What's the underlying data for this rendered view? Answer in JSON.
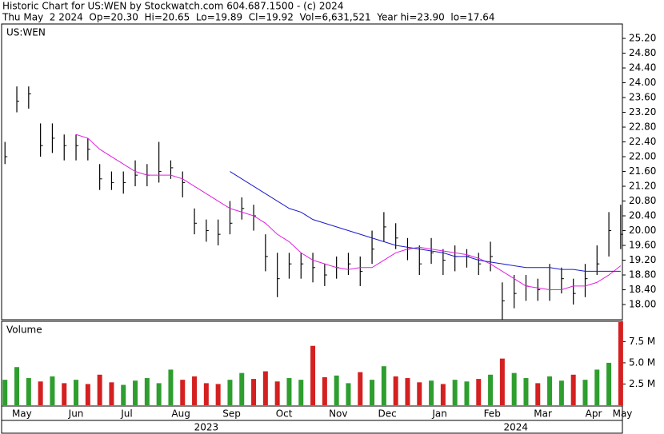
{
  "chart_data": {
    "type": "ohlc",
    "title": "Historic Chart for US:WEN by Stockwatch.com 604.687.1500 - (c) 2024",
    "subtitle": "Thu May  2 2024  Op=20.30  Hi=20.65  Lo=19.89  Cl=19.92  Vol=6,631,521  Year hi=23.90  lo=17.64",
    "symbol": "US:WEN",
    "volume_label": "Volume",
    "x": [
      2,
      9,
      16,
      23,
      30,
      37,
      44,
      51,
      58,
      65,
      72,
      79,
      86,
      93,
      100,
      107,
      114,
      121,
      128,
      135,
      142,
      149,
      156,
      163,
      170,
      177,
      184,
      191,
      198,
      205,
      212,
      219,
      226,
      233,
      240,
      247,
      254,
      261,
      268,
      275,
      282,
      289,
      296,
      303,
      310,
      317,
      324,
      331,
      338,
      345,
      352,
      359,
      366
    ],
    "high": [
      22.4,
      23.9,
      23.9,
      22.9,
      22.9,
      22.6,
      22.6,
      22.5,
      21.8,
      21.6,
      21.6,
      21.9,
      21.8,
      22.4,
      21.9,
      21.6,
      20.6,
      20.3,
      20.3,
      20.8,
      20.9,
      20.7,
      19.9,
      19.4,
      19.4,
      19.4,
      19.4,
      19.1,
      19.3,
      19.4,
      19.3,
      20.0,
      20.5,
      20.2,
      19.8,
      19.6,
      19.8,
      19.5,
      19.6,
      19.5,
      19.4,
      19.7,
      18.6,
      18.8,
      18.8,
      18.7,
      19.1,
      19.0,
      18.7,
      19.1,
      19.6,
      20.5,
      20.7
    ],
    "low": [
      21.8,
      23.2,
      23.3,
      22.0,
      22.1,
      21.9,
      21.9,
      21.9,
      21.1,
      21.1,
      21.0,
      21.2,
      21.2,
      21.3,
      21.4,
      20.9,
      19.9,
      19.7,
      19.6,
      19.9,
      20.3,
      20.0,
      18.9,
      18.2,
      18.7,
      18.7,
      18.6,
      18.5,
      18.7,
      18.8,
      18.5,
      19.1,
      19.7,
      19.5,
      19.2,
      18.8,
      19.1,
      18.8,
      18.9,
      19.0,
      18.8,
      18.9,
      17.6,
      17.9,
      18.1,
      18.1,
      18.1,
      18.3,
      18.0,
      18.2,
      18.8,
      19.3,
      19.5
    ],
    "close": [
      22.0,
      23.5,
      23.7,
      22.3,
      22.5,
      22.3,
      22.3,
      22.2,
      21.4,
      21.3,
      21.3,
      21.5,
      21.5,
      21.6,
      21.7,
      21.3,
      20.2,
      20.0,
      19.9,
      20.2,
      20.6,
      20.4,
      19.3,
      18.7,
      19.1,
      19.1,
      19.0,
      18.8,
      19.0,
      19.1,
      18.9,
      19.5,
      20.1,
      19.8,
      19.5,
      19.1,
      19.4,
      19.2,
      19.3,
      19.3,
      19.1,
      19.3,
      18.1,
      18.3,
      18.5,
      18.4,
      18.4,
      18.7,
      18.3,
      18.7,
      19.1,
      20.0,
      19.9
    ],
    "up_color": "#2e9e2e",
    "down_color": "#d42020",
    "bar_color": "#000000",
    "ma": [
      {
        "color": "#e020e0",
        "values": [
          null,
          null,
          null,
          null,
          null,
          null,
          22.6,
          22.5,
          22.2,
          22.0,
          21.8,
          21.6,
          21.5,
          21.5,
          21.5,
          21.4,
          21.2,
          21.0,
          20.8,
          20.6,
          20.5,
          20.4,
          20.2,
          19.9,
          19.7,
          19.4,
          19.2,
          19.1,
          19.0,
          18.95,
          19.0,
          19.0,
          19.2,
          19.4,
          19.5,
          19.55,
          19.5,
          19.45,
          19.4,
          19.35,
          19.25,
          19.1,
          18.9,
          18.7,
          18.5,
          18.45,
          18.4,
          18.4,
          18.5,
          18.5,
          18.6,
          18.8,
          19.05
        ]
      },
      {
        "color": "#1a1acc",
        "values": [
          null,
          null,
          null,
          null,
          null,
          null,
          null,
          null,
          null,
          null,
          null,
          null,
          null,
          null,
          null,
          null,
          null,
          null,
          null,
          21.6,
          21.4,
          21.2,
          21.0,
          20.8,
          20.6,
          20.5,
          20.3,
          20.2,
          20.1,
          20.0,
          19.9,
          19.8,
          19.7,
          19.6,
          19.55,
          19.5,
          19.45,
          19.4,
          19.3,
          19.3,
          19.2,
          19.15,
          19.1,
          19.05,
          19.0,
          19.0,
          19.0,
          18.95,
          18.95,
          18.9,
          18.9,
          18.9,
          18.9
        ]
      }
    ],
    "volume": [
      3.0,
      4.5,
      3.2,
      2.8,
      3.4,
      2.6,
      3.0,
      2.5,
      3.6,
      2.7,
      2.4,
      2.9,
      3.2,
      2.6,
      4.2,
      3.0,
      3.4,
      2.6,
      2.5,
      3.0,
      3.8,
      3.1,
      4.0,
      2.8,
      3.2,
      3.0,
      7.0,
      3.3,
      3.5,
      2.6,
      3.9,
      3.0,
      4.6,
      3.4,
      3.2,
      2.7,
      2.9,
      2.5,
      3.0,
      2.8,
      3.1,
      3.6,
      5.5,
      3.8,
      3.2,
      2.6,
      3.4,
      2.9,
      3.6,
      3.0,
      4.2,
      5.0,
      9.8
    ],
    "xlim": [
      0,
      367
    ],
    "xticks": [
      {
        "value": 12,
        "label": "May"
      },
      {
        "value": 44,
        "label": "Jun"
      },
      {
        "value": 74,
        "label": "Jul"
      },
      {
        "value": 106,
        "label": "Aug"
      },
      {
        "value": 136,
        "label": "Sep"
      },
      {
        "value": 167,
        "label": "Oct"
      },
      {
        "value": 199,
        "label": "Nov"
      },
      {
        "value": 228,
        "label": "Dec"
      },
      {
        "value": 259,
        "label": "Jan"
      },
      {
        "value": 290,
        "label": "Feb"
      },
      {
        "value": 320,
        "label": "Mar"
      },
      {
        "value": 350,
        "label": "Apr"
      },
      {
        "value": 367,
        "label": "May"
      }
    ],
    "years": [
      {
        "value": 121,
        "label": "2023"
      },
      {
        "value": 304,
        "label": "2024"
      }
    ],
    "ylim": [
      17.59,
      25.59
    ],
    "yticks": [
      {
        "value": 18,
        "label": "18.00"
      },
      {
        "value": 18.4,
        "label": "18.40"
      },
      {
        "value": 18.8,
        "label": "18.80"
      },
      {
        "value": 19.2,
        "label": "19.20"
      },
      {
        "value": 19.6,
        "label": "19.60"
      },
      {
        "value": 20,
        "label": "20.00"
      },
      {
        "value": 20.4,
        "label": "20.40"
      },
      {
        "value": 20.8,
        "label": "20.80"
      },
      {
        "value": 21.2,
        "label": "21.20"
      },
      {
        "value": 21.6,
        "label": "21.60"
      },
      {
        "value": 22,
        "label": "22.00"
      },
      {
        "value": 22.4,
        "label": "22.40"
      },
      {
        "value": 22.8,
        "label": "22.80"
      },
      {
        "value": 23.2,
        "label": "23.20"
      },
      {
        "value": 23.6,
        "label": "23.60"
      },
      {
        "value": 24,
        "label": "24.00"
      },
      {
        "value": 24.4,
        "label": "24.40"
      },
      {
        "value": 24.8,
        "label": "24.80"
      },
      {
        "value": 25.2,
        "label": "25.20"
      }
    ],
    "vlim": [
      0,
      9.8
    ],
    "vticks": [
      {
        "value": 2.5,
        "label": "2.5 M"
      },
      {
        "value": 5,
        "label": "5.0 M"
      },
      {
        "value": 7.5,
        "label": "7.5 M"
      }
    ]
  }
}
